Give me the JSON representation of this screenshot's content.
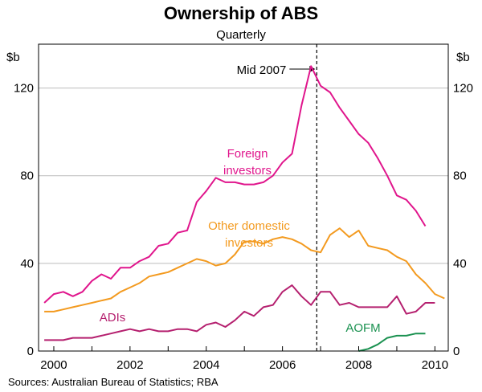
{
  "chart_data": {
    "type": "line",
    "title": "Ownership of ABS",
    "subtitle": "Quarterly",
    "unit_left": "$b",
    "unit_right": "$b",
    "x_start": 1999.75,
    "x_step": 0.25,
    "xlim": [
      1999.6,
      2010.35
    ],
    "ylim": [
      0,
      140
    ],
    "y_ticks": [
      0,
      40,
      80,
      120
    ],
    "x_ticks": [
      2000,
      2002,
      2004,
      2006,
      2008,
      2010
    ],
    "x_tick_labels": [
      "2000",
      "2002",
      "2004",
      "2006",
      "2008",
      "2010"
    ],
    "y_grid": true,
    "series": [
      {
        "name": "Foreign investors",
        "label_lines": [
          "Foreign",
          "investors"
        ],
        "color": "#e0158c",
        "values": [
          22,
          26,
          27,
          25,
          27,
          32,
          35,
          33,
          38,
          38,
          41,
          43,
          48,
          49,
          54,
          55,
          68,
          73,
          79,
          77,
          77,
          76,
          76,
          77,
          80,
          86,
          90,
          112,
          130,
          121,
          118,
          111,
          105,
          99,
          95,
          88,
          80,
          71,
          69,
          64,
          57
        ]
      },
      {
        "name": "Other domestic investors",
        "label_lines": [
          "Other domestic",
          "investors"
        ],
        "color": "#f39a1f",
        "values": [
          18,
          18,
          19,
          20,
          21,
          22,
          23,
          24,
          27,
          29,
          31,
          34,
          35,
          36,
          38,
          40,
          42,
          41,
          39,
          40,
          44,
          50,
          50,
          49,
          51,
          52,
          51,
          49,
          46,
          45,
          53,
          56,
          52,
          55,
          48,
          47,
          46,
          43,
          41,
          35,
          31,
          26,
          24
        ]
      },
      {
        "name": "ADIs",
        "label_lines": [
          "ADIs"
        ],
        "color": "#b5206f",
        "values": [
          5,
          5,
          5,
          6,
          6,
          6,
          7,
          8,
          9,
          10,
          9,
          10,
          9,
          9,
          10,
          10,
          9,
          12,
          13,
          11,
          14,
          18,
          16,
          20,
          21,
          27,
          30,
          25,
          21,
          27,
          27,
          21,
          22,
          20,
          20,
          20,
          20,
          25,
          17,
          18,
          22,
          22
        ]
      },
      {
        "name": "AOFM",
        "label_lines": [
          "AOFM"
        ],
        "color": "#1a9150",
        "x_start": 2008.0,
        "values": [
          0,
          1,
          3,
          6,
          7,
          7,
          8,
          8
        ]
      }
    ],
    "annotation": {
      "label": "Mid 2007",
      "x": 2006.9
    }
  },
  "footer": {
    "source": "Sources: Australian Bureau of Statistics; RBA"
  }
}
